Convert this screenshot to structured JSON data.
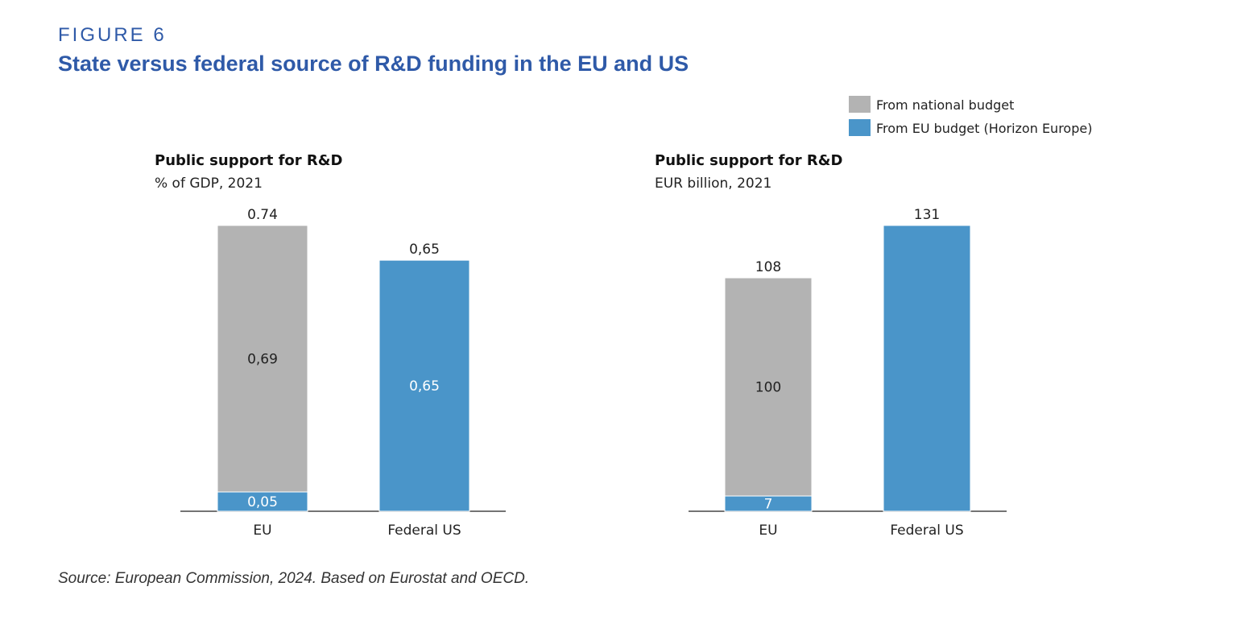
{
  "figure": {
    "label": "FIGURE 6",
    "title": "State versus federal source of R&D funding in the EU and US",
    "source": "Source: European Commission, 2024. Based on Eurostat and OECD."
  },
  "colors": {
    "national": "#b3b3b3",
    "eu_budget": "#4a95c9",
    "title": "#2f5aa8"
  },
  "legend": [
    {
      "name": "From national budget",
      "color": "#b3b3b3"
    },
    {
      "name": "From EU budget (Horizon Europe)",
      "color": "#4a95c9"
    }
  ],
  "chart_data": [
    {
      "type": "bar",
      "stacked": true,
      "title": "Public support for R&D",
      "subtitle": "% of GDP, 2021",
      "categories": [
        "EU",
        "Federal US"
      ],
      "series": [
        {
          "name": "From EU budget (Horizon Europe)",
          "values": [
            0.05,
            0.65
          ],
          "labels": [
            "0,05",
            "0,65"
          ]
        },
        {
          "name": "From national budget",
          "values": [
            0.69,
            0
          ],
          "labels": [
            "0,69",
            ""
          ]
        }
      ],
      "totals": [
        "0.74",
        "0,65"
      ],
      "ylim": [
        0,
        0.74
      ],
      "grid": false
    },
    {
      "type": "bar",
      "stacked": true,
      "title": "Public support for R&D",
      "subtitle": "EUR billion,  2021",
      "categories": [
        "EU",
        "Federal US"
      ],
      "series": [
        {
          "name": "From EU budget (Horizon Europe)",
          "values": [
            7,
            131
          ],
          "labels": [
            "7",
            ""
          ]
        },
        {
          "name": "From national budget",
          "values": [
            100,
            0
          ],
          "labels": [
            "100",
            ""
          ]
        }
      ],
      "totals": [
        "108",
        "131"
      ],
      "ylim": [
        0,
        131
      ],
      "grid": false
    }
  ]
}
